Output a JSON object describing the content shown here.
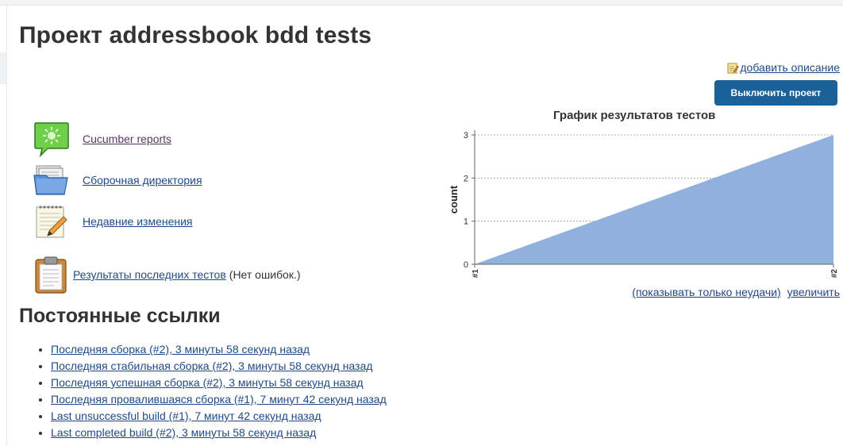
{
  "page": {
    "title": "Проект addressbook bdd tests",
    "edit_description": "добавить описание",
    "disable_button": "Выключить проект"
  },
  "tasks": [
    {
      "label": "Cucumber reports",
      "icon": "cucumber-report-icon"
    },
    {
      "label": "Сборочная директория",
      "icon": "folder-icon"
    },
    {
      "label": "Недавние изменения",
      "icon": "notepad-icon"
    }
  ],
  "test_results": {
    "label": "Результаты последних тестов",
    "suffix": "(Нет ошибок.)",
    "icon": "clipboard-icon"
  },
  "chart_links": {
    "only_failures": "(показывать только неудачи)",
    "enlarge": "увеличить"
  },
  "chart_data": {
    "type": "area",
    "title": "График результатов тестов",
    "ylabel": "count",
    "xlabel": "",
    "categories": [
      "#1",
      "#2"
    ],
    "series": [
      {
        "values": [
          0,
          3
        ]
      }
    ],
    "ylim": [
      0,
      3
    ],
    "yticks": [
      0,
      1,
      2,
      3
    ],
    "fill_color": "#90b1dc",
    "grid": true
  },
  "permalinks": {
    "title": "Постоянные ссылки",
    "items": [
      "Последняя сборка (#2), 3 минуты 58 секунд назад",
      "Последняя стабильная сборка (#2), 3 минуты 58 секунд назад",
      "Последняя успешная сборка (#2), 3 минуты 58 секунд назад",
      "Последняя провалившаяся сборка (#1), 7 минут 42 секунд назад",
      "Last unsuccessful build (#1), 7 минут 42 секунд назад",
      "Last completed build (#2), 3 минуты 58 секунд назад"
    ]
  },
  "colors": {
    "link": "#204a87",
    "button_bg": "#1a6199",
    "chart_fill": "#90b1dc"
  }
}
